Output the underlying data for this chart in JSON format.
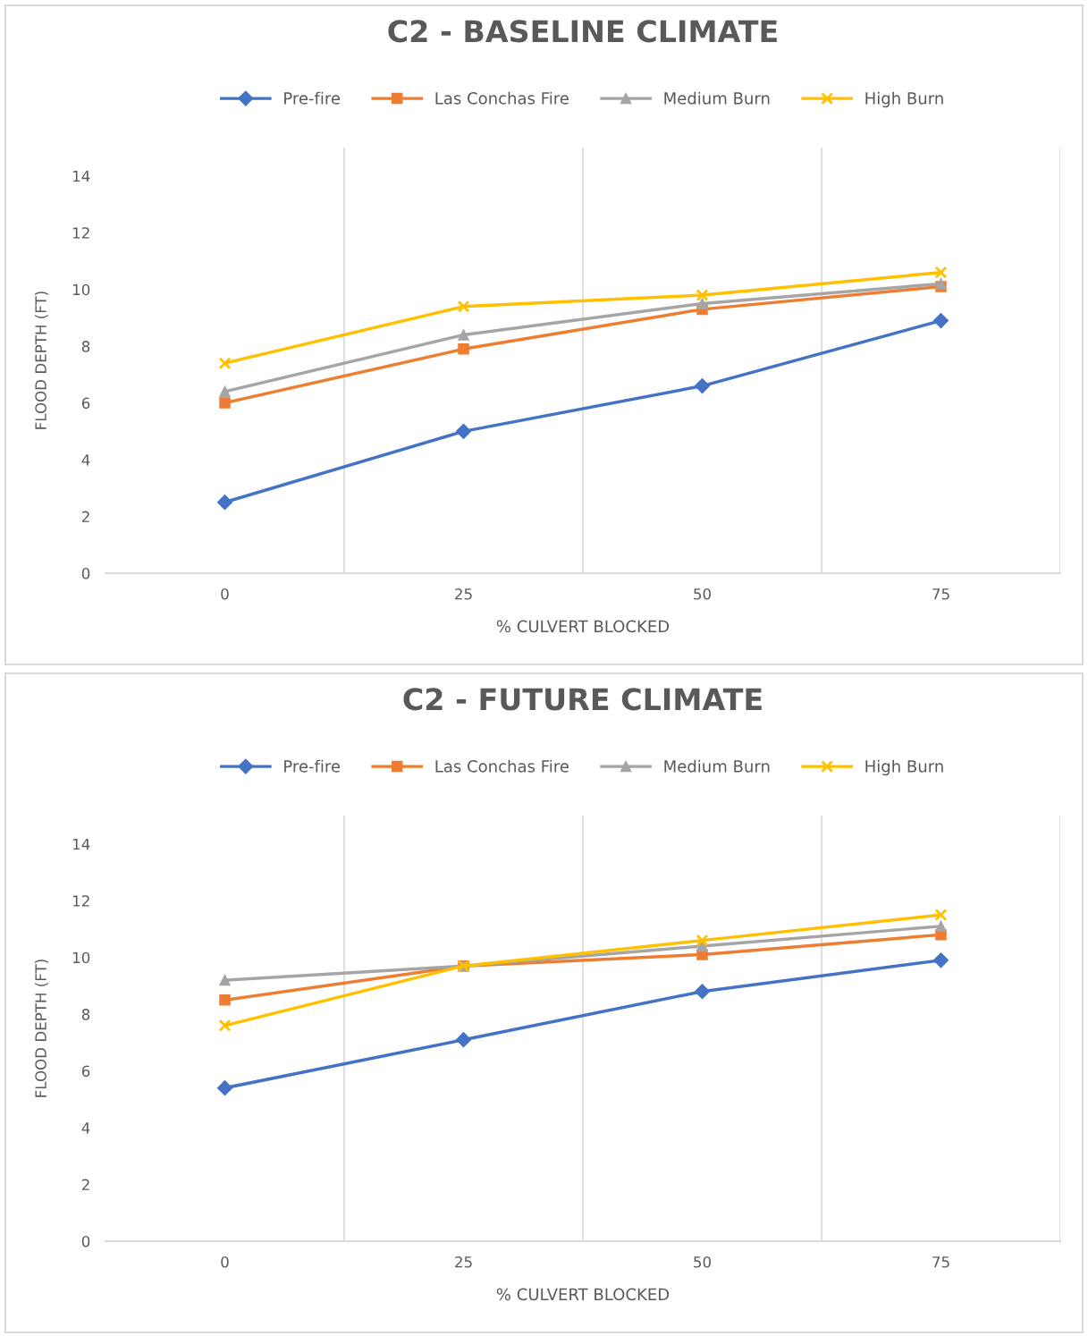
{
  "chart_data": [
    {
      "type": "line",
      "title": "C2 - BASELINE CLIMATE",
      "xlabel": "% CULVERT BLOCKED",
      "ylabel": "FLOOD DEPTH (FT)",
      "categories": [
        "0",
        "25",
        "50",
        "75"
      ],
      "ylim": [
        0,
        15
      ],
      "yticks": [
        0,
        2,
        4,
        6,
        8,
        10,
        12,
        14
      ],
      "grid": "x",
      "legend": "top",
      "line_style": "solid",
      "series": [
        {
          "name": "Pre-fire",
          "color": "#4472c4",
          "marker": "diamond",
          "values": [
            2.5,
            5.0,
            6.6,
            8.9
          ]
        },
        {
          "name": "Las Conchas Fire",
          "color": "#ed7d31",
          "marker": "square",
          "values": [
            6.0,
            7.9,
            9.3,
            10.1
          ]
        },
        {
          "name": "Medium Burn",
          "color": "#a5a5a5",
          "marker": "triangle",
          "values": [
            6.4,
            8.4,
            9.5,
            10.2
          ]
        },
        {
          "name": "High Burn",
          "color": "#ffc000",
          "marker": "cross",
          "values": [
            7.4,
            9.4,
            9.8,
            10.6
          ]
        }
      ]
    },
    {
      "type": "line",
      "title": "C2 - FUTURE CLIMATE",
      "xlabel": "% CULVERT BLOCKED",
      "ylabel": "FLOOD DEPTH (FT)",
      "categories": [
        "0",
        "25",
        "50",
        "75"
      ],
      "ylim": [
        0,
        15
      ],
      "yticks": [
        0,
        2,
        4,
        6,
        8,
        10,
        12,
        14
      ],
      "grid": "x",
      "legend": "top",
      "line_style": "solid",
      "series": [
        {
          "name": "Pre-fire",
          "color": "#4472c4",
          "marker": "diamond",
          "values": [
            5.4,
            7.1,
            8.8,
            9.9
          ]
        },
        {
          "name": "Las Conchas Fire",
          "color": "#ed7d31",
          "marker": "square",
          "values": [
            8.5,
            9.7,
            10.1,
            10.8
          ]
        },
        {
          "name": "Medium Burn",
          "color": "#a5a5a5",
          "marker": "triangle",
          "values": [
            9.2,
            9.7,
            10.4,
            11.1
          ]
        },
        {
          "name": "High Burn",
          "color": "#ffc000",
          "marker": "cross",
          "values": [
            7.6,
            9.7,
            10.6,
            11.5
          ]
        }
      ]
    }
  ]
}
